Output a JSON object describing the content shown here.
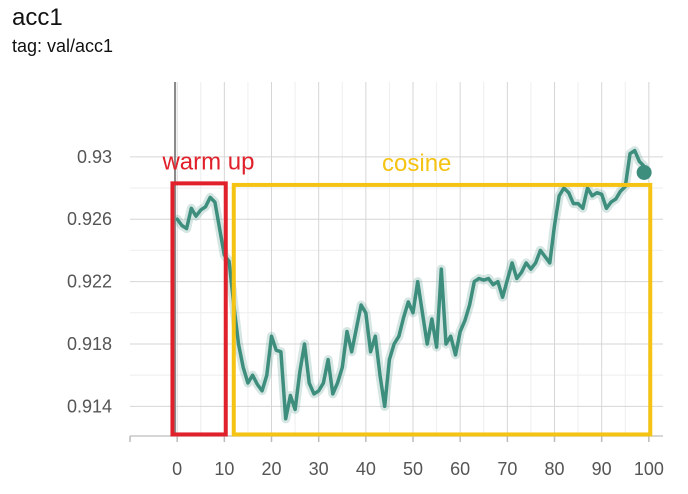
{
  "header": {
    "title": "acc1",
    "tag": "tag: val/acc1"
  },
  "chart_data": {
    "type": "line",
    "title": "acc1",
    "subtitle": "tag: val/acc1",
    "xlabel": "",
    "ylabel": "",
    "xlim": [
      -10,
      103
    ],
    "ylim": [
      0.9121,
      0.9348
    ],
    "x_ticks": [
      0,
      10,
      20,
      30,
      40,
      50,
      60,
      70,
      80,
      90,
      100
    ],
    "y_ticks": [
      0.914,
      0.918,
      0.922,
      0.926,
      0.93
    ],
    "y_tick_labels": [
      "0.914",
      "0.918",
      "0.922",
      "0.926",
      "0.93"
    ],
    "grid": true,
    "series": [
      {
        "color": "#3e8e7e",
        "x": [
          0,
          1,
          2,
          3,
          4,
          5,
          6,
          7,
          8,
          9,
          10,
          11,
          12,
          13,
          14,
          15,
          16,
          17,
          18,
          19,
          20,
          21,
          22,
          23,
          24,
          25,
          26,
          27,
          28,
          29,
          30,
          31,
          32,
          33,
          34,
          35,
          36,
          37,
          38,
          39,
          40,
          41,
          42,
          43,
          44,
          45,
          46,
          47,
          48,
          49,
          50,
          51,
          52,
          53,
          54,
          55,
          56,
          57,
          58,
          59,
          60,
          61,
          62,
          63,
          64,
          65,
          66,
          67,
          68,
          69,
          70,
          71,
          72,
          73,
          74,
          75,
          76,
          77,
          78,
          79,
          80,
          81,
          82,
          83,
          84,
          85,
          86,
          87,
          88,
          89,
          90,
          91,
          92,
          93,
          94,
          95,
          96,
          97,
          98,
          99
        ],
        "values": [
          0.926,
          0.9256,
          0.9254,
          0.9267,
          0.9262,
          0.9266,
          0.9268,
          0.9274,
          0.9271,
          0.9254,
          0.9237,
          0.9233,
          0.9205,
          0.918,
          0.9165,
          0.9155,
          0.916,
          0.9154,
          0.915,
          0.916,
          0.9185,
          0.9176,
          0.9175,
          0.9132,
          0.9147,
          0.9138,
          0.9162,
          0.918,
          0.9155,
          0.9148,
          0.915,
          0.9155,
          0.917,
          0.9148,
          0.9155,
          0.9165,
          0.9188,
          0.9175,
          0.919,
          0.9205,
          0.92,
          0.9175,
          0.9185,
          0.916,
          0.914,
          0.917,
          0.918,
          0.9185,
          0.9197,
          0.9207,
          0.92,
          0.922,
          0.92,
          0.918,
          0.9196,
          0.9178,
          0.9228,
          0.918,
          0.9185,
          0.9173,
          0.9188,
          0.9195,
          0.9205,
          0.922,
          0.9222,
          0.9221,
          0.9222,
          0.9218,
          0.922,
          0.921,
          0.9221,
          0.9232,
          0.9222,
          0.9226,
          0.9232,
          0.9228,
          0.9232,
          0.924,
          0.9236,
          0.9232,
          0.9256,
          0.9275,
          0.928,
          0.9277,
          0.927,
          0.927,
          0.9267,
          0.928,
          0.9275,
          0.9277,
          0.9276,
          0.9267,
          0.9271,
          0.9273,
          0.9278,
          0.9281,
          0.9302,
          0.9304,
          0.9297,
          0.9294
        ],
        "end_point": [
          99,
          0.929
        ]
      }
    ],
    "annotations": [
      {
        "text": "warm up",
        "color": "#e0202a",
        "x_range": [
          -1,
          10.3
        ],
        "y_range": [
          0.9122,
          0.9283
        ]
      },
      {
        "text": "cosine",
        "color": "#f5c314",
        "x_range": [
          12,
          100.3
        ],
        "y_range": [
          0.9122,
          0.9282
        ]
      }
    ]
  }
}
